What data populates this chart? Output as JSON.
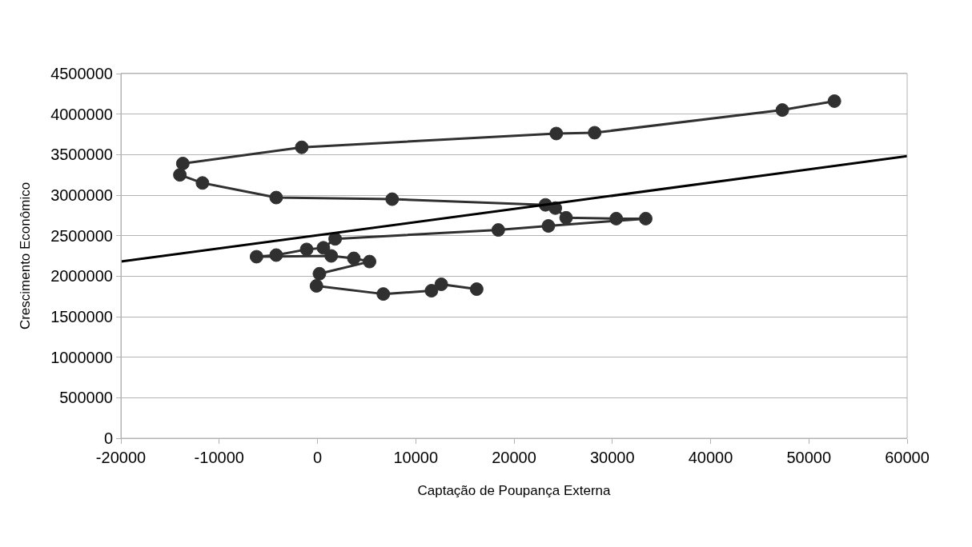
{
  "chart_data": {
    "type": "line",
    "xlabel": "Captação de Poupança Externa",
    "ylabel": "Crescimento Econômico",
    "xlim": [
      -20000,
      60000
    ],
    "xticks": [
      -20000,
      -10000,
      0,
      10000,
      20000,
      30000,
      40000,
      50000,
      60000
    ],
    "ylim": [
      0,
      4500000
    ],
    "yticks": [
      0,
      500000,
      1000000,
      1500000,
      2000000,
      2500000,
      3000000,
      3500000,
      4000000,
      4500000
    ],
    "grid": "y",
    "line_style": "solid",
    "series": [
      {
        "color": "#303030",
        "marker": "circle",
        "x": [
          16200,
          12600,
          11600,
          6700,
          -100,
          200,
          5300,
          3700,
          1400,
          -6200,
          -4200,
          -1100,
          600,
          1800,
          18400,
          23500,
          33400,
          30400,
          25300,
          24200,
          23200,
          7600,
          -4200,
          -11700,
          -14000,
          -13700,
          -1600,
          24300,
          28200,
          47300,
          52600
        ],
        "values": [
          1840000,
          1900000,
          1820000,
          1780000,
          1880000,
          2030000,
          2180000,
          2220000,
          2250000,
          2240000,
          2260000,
          2330000,
          2350000,
          2460000,
          2570000,
          2620000,
          2710000,
          2710000,
          2720000,
          2840000,
          2880000,
          2950000,
          2970000,
          3150000,
          3250000,
          3390000,
          3590000,
          3760000,
          3770000,
          4050000,
          4160000
        ]
      },
      {
        "type": "line",
        "color": "#000000",
        "marker": "none",
        "x": [
          -20000,
          60000
        ],
        "values": [
          2180000,
          3480000
        ]
      }
    ]
  }
}
